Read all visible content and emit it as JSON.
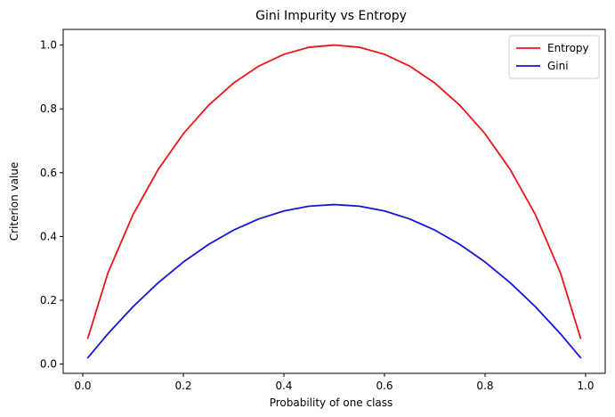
{
  "chart_data": {
    "type": "line",
    "title": "Gini Impurity vs Entropy",
    "xlabel": "Probability of one class",
    "ylabel": "Criterion value",
    "xlim": [
      -0.039,
      1.039
    ],
    "ylim": [
      -0.029,
      1.049
    ],
    "xticks": [
      0.0,
      0.2,
      0.4,
      0.6,
      0.8,
      1.0
    ],
    "xtick_labels": [
      "0.0",
      "0.2",
      "0.4",
      "0.6",
      "0.8",
      "1.0"
    ],
    "yticks": [
      0.0,
      0.2,
      0.4,
      0.6,
      0.8,
      1.0
    ],
    "ytick_labels": [
      "0.0",
      "0.2",
      "0.4",
      "0.6",
      "0.8",
      "1.0"
    ],
    "grid": false,
    "legend_position": "top-right",
    "x": [
      0.01,
      0.05,
      0.1,
      0.15,
      0.2,
      0.25,
      0.3,
      0.35,
      0.4,
      0.45,
      0.5,
      0.55,
      0.6,
      0.65,
      0.7,
      0.75,
      0.8,
      0.85,
      0.9,
      0.95,
      0.99
    ],
    "series": [
      {
        "name": "Entropy",
        "color": "#e8161b",
        "values": [
          0.081,
          0.286,
          0.469,
          0.61,
          0.722,
          0.811,
          0.881,
          0.934,
          0.971,
          0.993,
          1.0,
          0.993,
          0.971,
          0.934,
          0.881,
          0.811,
          0.722,
          0.61,
          0.469,
          0.286,
          0.081
        ]
      },
      {
        "name": "Gini",
        "color": "#1515d6",
        "values": [
          0.02,
          0.095,
          0.18,
          0.255,
          0.32,
          0.375,
          0.42,
          0.455,
          0.48,
          0.495,
          0.5,
          0.495,
          0.48,
          0.455,
          0.42,
          0.375,
          0.32,
          0.255,
          0.18,
          0.095,
          0.02
        ]
      }
    ]
  }
}
